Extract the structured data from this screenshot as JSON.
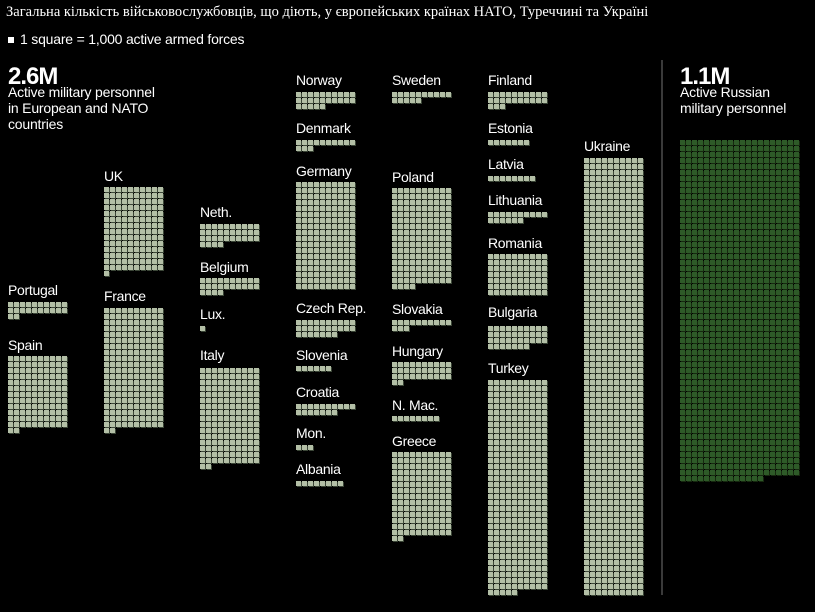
{
  "title": "Загальна кількість військовослужбовців, що діють, у європейських країнах НАТО, Туреччині та Україні",
  "legend": "1 square = 1,000 active armed forces",
  "nato_total": {
    "value": "2.6M",
    "caption_lines": [
      "Active military personnel",
      "in European and NATO",
      "countries"
    ]
  },
  "russia_total": {
    "value": "1.1M",
    "caption_lines": [
      "Active Russian",
      "military personnel"
    ]
  },
  "colors": {
    "nato": "#b3bfa6",
    "russia": "#2e5a28",
    "background": "#000000"
  },
  "chart_data": {
    "type": "waffle",
    "unit": "1 square = 1,000 active armed forces",
    "series": [
      {
        "name": "Portugal",
        "value": 22
      },
      {
        "name": "Spain",
        "value": 122
      },
      {
        "name": "UK",
        "value": 141
      },
      {
        "name": "France",
        "value": 202
      },
      {
        "name": "Neth.",
        "value": 34
      },
      {
        "name": "Belgium",
        "value": 24
      },
      {
        "name": "Lux.",
        "value": 1
      },
      {
        "name": "Italy",
        "value": 162
      },
      {
        "name": "Norway",
        "value": 25
      },
      {
        "name": "Denmark",
        "value": 13
      },
      {
        "name": "Germany",
        "value": 180
      },
      {
        "name": "Czech Rep.",
        "value": 27
      },
      {
        "name": "Slovenia",
        "value": 6
      },
      {
        "name": "Croatia",
        "value": 17
      },
      {
        "name": "Mon.",
        "value": 3
      },
      {
        "name": "Albania",
        "value": 8
      },
      {
        "name": "Sweden",
        "value": 15
      },
      {
        "name": "Poland",
        "value": 164
      },
      {
        "name": "Slovakia",
        "value": 13
      },
      {
        "name": "Hungary",
        "value": 32
      },
      {
        "name": "N. Mac.",
        "value": 8
      },
      {
        "name": "Greece",
        "value": 142
      },
      {
        "name": "Finland",
        "value": 23
      },
      {
        "name": "Estonia",
        "value": 7
      },
      {
        "name": "Latvia",
        "value": 8
      },
      {
        "name": "Lithuania",
        "value": 16
      },
      {
        "name": "Romania",
        "value": 70
      },
      {
        "name": "Bulgaria",
        "value": 37
      },
      {
        "name": "Turkey",
        "value": 355
      },
      {
        "name": "Ukraine",
        "value": 730
      },
      {
        "name": "Russia",
        "value": 1134
      }
    ]
  }
}
